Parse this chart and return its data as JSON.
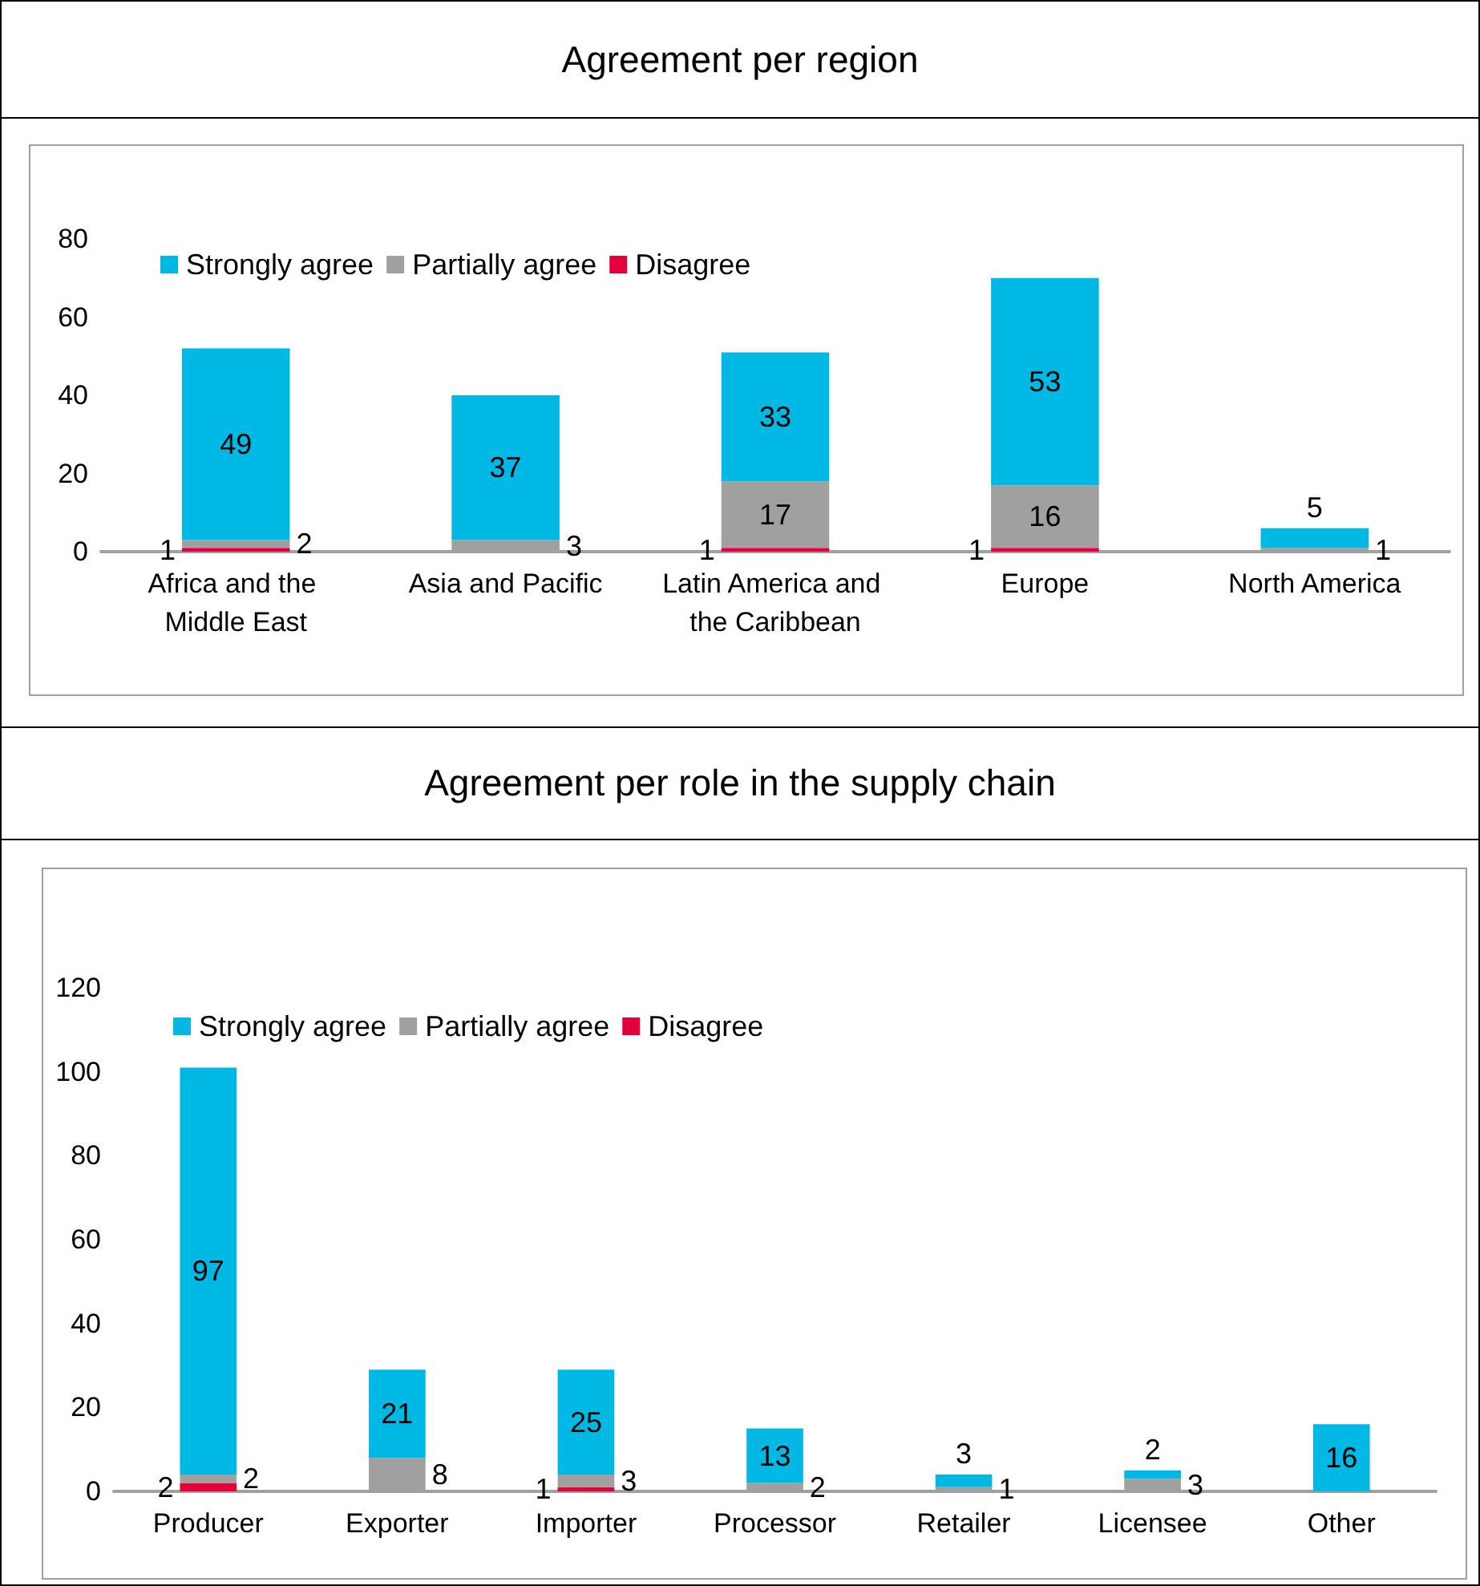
{
  "chart_data": [
    {
      "type": "bar",
      "title": "Agreement per region",
      "stacked": true,
      "data_labels": true,
      "legend": "top left",
      "grid": false,
      "categories": [
        "Africa and the Middle East",
        "Asia and Pacific",
        "Latin America and the Caribbean",
        "Europe",
        "North America"
      ],
      "ylim": [
        0,
        80
      ],
      "yticks": [
        0,
        20,
        40,
        60,
        80
      ],
      "series": [
        {
          "name": "Disagree",
          "color": "#e4003a",
          "values": [
            1,
            null,
            1,
            1,
            null
          ]
        },
        {
          "name": "Partially agree",
          "color": "#a0a0a0",
          "values": [
            2,
            3,
            17,
            16,
            1
          ]
        },
        {
          "name": "Strongly agree",
          "color": "#00b8e4",
          "values": [
            49,
            37,
            33,
            53,
            5
          ]
        }
      ]
    },
    {
      "type": "bar",
      "title": "Agreement per role in the supply chain",
      "stacked": true,
      "data_labels": true,
      "legend": "top left",
      "grid": false,
      "categories": [
        "Producer",
        "Exporter",
        "Importer",
        "Processor",
        "Retailer",
        "Licensee",
        "Other"
      ],
      "ylim": [
        0,
        120
      ],
      "yticks": [
        0,
        20,
        40,
        60,
        80,
        100,
        120
      ],
      "series": [
        {
          "name": "Disagree",
          "color": "#e4003a",
          "values": [
            2,
            null,
            1,
            null,
            null,
            null,
            null
          ]
        },
        {
          "name": "Partially agree",
          "color": "#a0a0a0",
          "values": [
            2,
            8,
            3,
            2,
            1,
            3,
            null
          ]
        },
        {
          "name": "Strongly agree",
          "color": "#00b8e4",
          "values": [
            97,
            21,
            25,
            13,
            3,
            2,
            16
          ]
        }
      ]
    }
  ]
}
